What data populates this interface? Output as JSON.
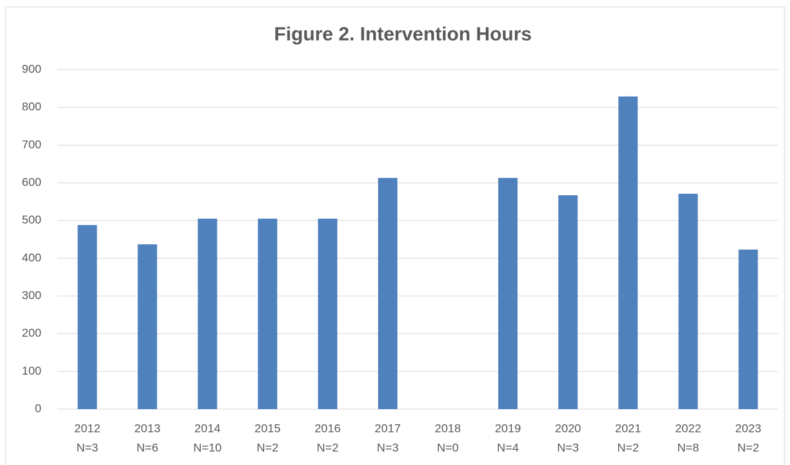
{
  "chart_data": {
    "type": "bar",
    "title": "Figure 2. Intervention Hours",
    "categories": [
      "2012",
      "2013",
      "2014",
      "2015",
      "2016",
      "2017",
      "2018",
      "2019",
      "2020",
      "2021",
      "2022",
      "2023"
    ],
    "sublabels": [
      "N=3",
      "N=6",
      "N=10",
      "N=2",
      "N=2",
      "N=3",
      "N=0",
      "N=4",
      "N=3",
      "N=2",
      "N=8",
      "N=2"
    ],
    "values": [
      488,
      437,
      505,
      505,
      505,
      613,
      0,
      613,
      567,
      829,
      571,
      423
    ],
    "color": "#4f81bd",
    "ylim": [
      0,
      900
    ],
    "yticks": [
      0,
      100,
      200,
      300,
      400,
      500,
      600,
      700,
      800,
      900
    ],
    "grid": true
  }
}
